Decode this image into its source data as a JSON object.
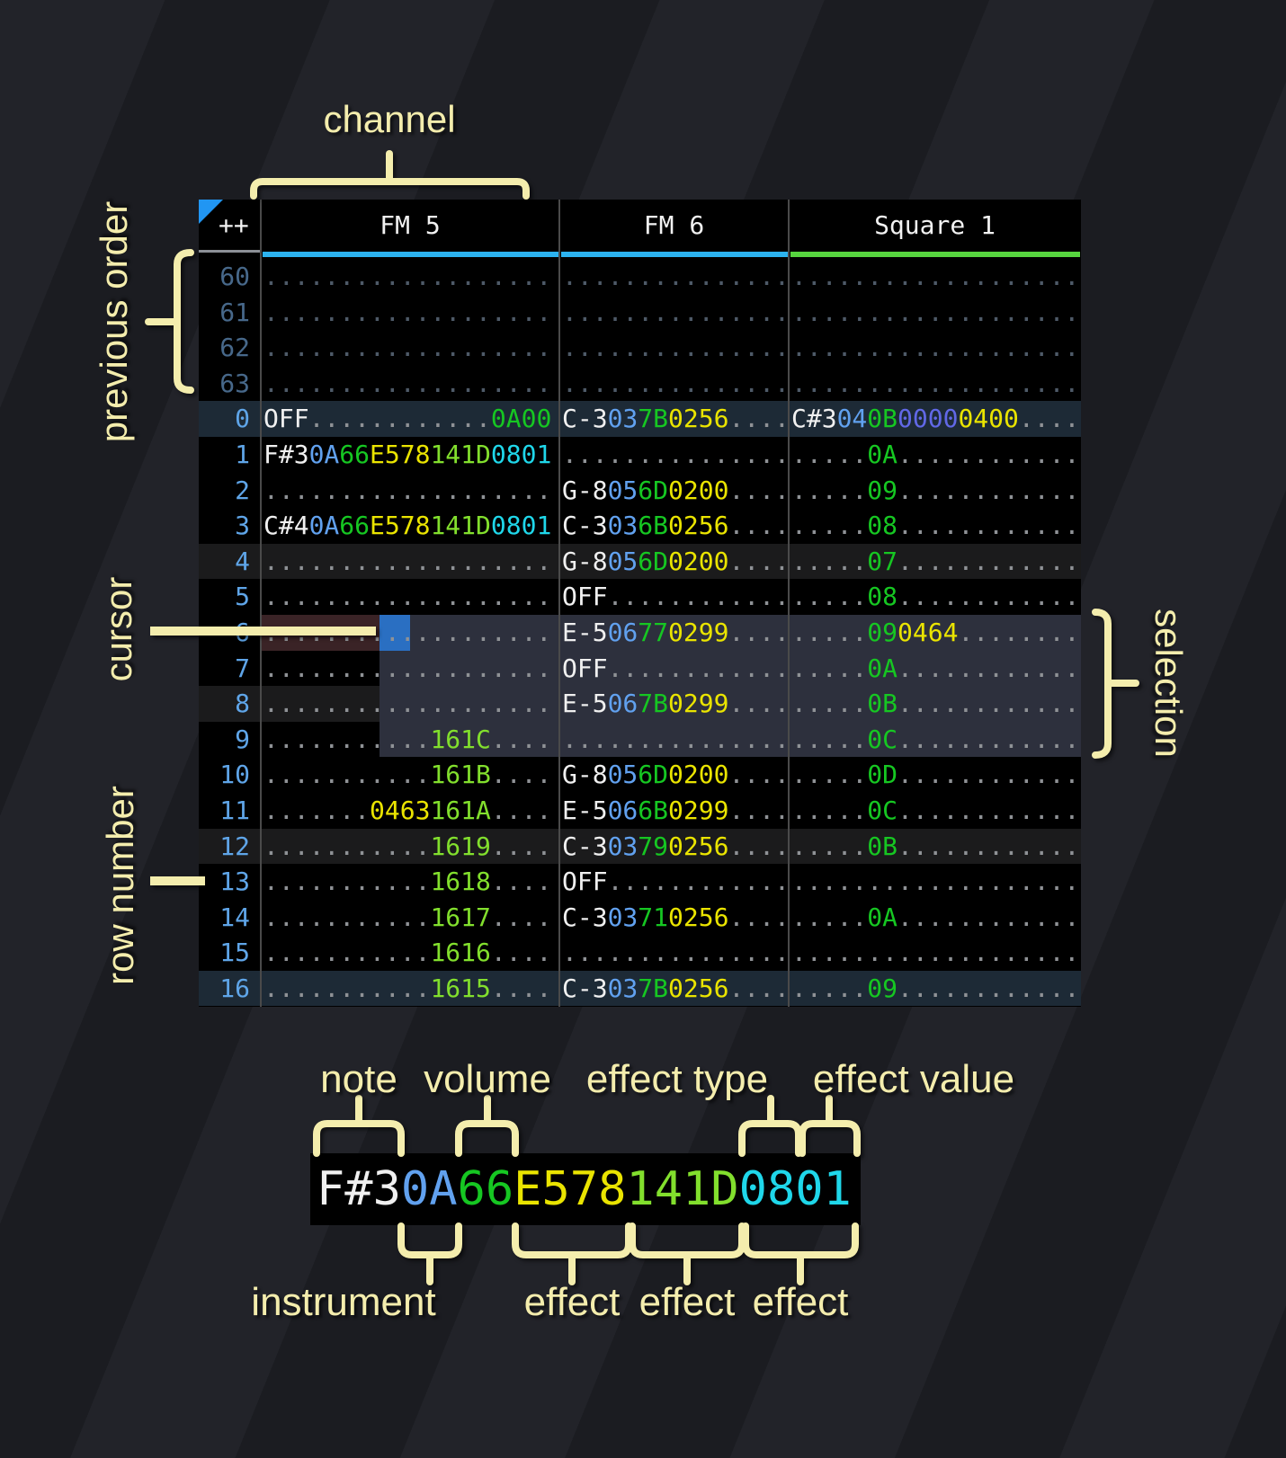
{
  "palette": {
    "note_white": "#f0f0f0",
    "instrument_blue": "#61a1ef",
    "volume_green": "#16c722",
    "effect_yellow": "#eae400",
    "effect_lime": "#82df2d",
    "effect_cyan": "#1fd7ea",
    "effect_indigo": "#6168e6",
    "dots_gray": "#8f9296",
    "row_number_blue": "#5fa5e8",
    "underline_cyan": "#2cb3f0",
    "underline_green": "#57d53f",
    "selection_bg": "#2d303d",
    "cursor_row_bg": "#3a2326",
    "cursor_bg": "#2a6fc2",
    "row_order_highlight_bg": "#1d2a36",
    "annotation_cream": "#f4edad",
    "corner_triangle_blue": "#2196f3"
  },
  "table": {
    "corner": "++",
    "channels": [
      {
        "label": "FM 5",
        "underline": "#2cb3f0"
      },
      {
        "label": "FM 6",
        "underline": "#2cb3f0"
      },
      {
        "label": "Square 1",
        "underline": "#57d53f"
      }
    ],
    "rows": [
      {
        "num": "60",
        "cls": "prev",
        "cells": [
          [
            [
              "d",
              "..................."
            ]
          ],
          [
            [
              "d",
              "..............."
            ]
          ],
          [
            [
              "d",
              "..................."
            ]
          ]
        ]
      },
      {
        "num": "61",
        "cls": "prev",
        "cells": [
          [
            [
              "d",
              "..................."
            ]
          ],
          [
            [
              "d",
              "..............."
            ]
          ],
          [
            [
              "d",
              "..................."
            ]
          ]
        ]
      },
      {
        "num": "62",
        "cls": "prev",
        "cells": [
          [
            [
              "d",
              "..................."
            ]
          ],
          [
            [
              "d",
              "..............."
            ]
          ],
          [
            [
              "d",
              "..................."
            ]
          ]
        ]
      },
      {
        "num": "63",
        "cls": "prev",
        "cells": [
          [
            [
              "d",
              "..................."
            ]
          ],
          [
            [
              "d",
              "..............."
            ]
          ],
          [
            [
              "d",
              "..................."
            ]
          ]
        ]
      },
      {
        "num": "0",
        "cls": "hl0",
        "cells": [
          [
            [
              "w",
              "OFF"
            ],
            [
              "d",
              "............"
            ],
            [
              "v",
              "0A00"
            ]
          ],
          [
            [
              "w",
              "C-3"
            ],
            [
              "i",
              "03"
            ],
            [
              "v",
              "7B"
            ],
            [
              "y",
              "0256"
            ],
            [
              "d",
              "...."
            ]
          ],
          [
            [
              "w",
              "C#3"
            ],
            [
              "i",
              "04"
            ],
            [
              "v",
              "0B"
            ],
            [
              "p",
              "0000"
            ],
            [
              "y",
              "0400"
            ],
            [
              "d",
              "...."
            ]
          ]
        ]
      },
      {
        "num": "1",
        "cls": "",
        "cells": [
          [
            [
              "w",
              "F#3"
            ],
            [
              "i",
              "0A"
            ],
            [
              "v",
              "66"
            ],
            [
              "y",
              "E578"
            ],
            [
              "l",
              "141D"
            ],
            [
              "c",
              "0801"
            ]
          ],
          [
            [
              "d",
              "..............."
            ]
          ],
          [
            [
              "d",
              "....."
            ],
            [
              "v",
              "0A"
            ],
            [
              "d",
              "............"
            ]
          ]
        ]
      },
      {
        "num": "2",
        "cls": "",
        "cells": [
          [
            [
              "d",
              "..................."
            ]
          ],
          [
            [
              "w",
              "G-8"
            ],
            [
              "i",
              "05"
            ],
            [
              "v",
              "6D"
            ],
            [
              "y",
              "0200"
            ],
            [
              "d",
              "...."
            ]
          ],
          [
            [
              "d",
              "....."
            ],
            [
              "v",
              "09"
            ],
            [
              "d",
              "............"
            ]
          ]
        ]
      },
      {
        "num": "3",
        "cls": "",
        "cells": [
          [
            [
              "w",
              "C#4"
            ],
            [
              "i",
              "0A"
            ],
            [
              "v",
              "66"
            ],
            [
              "y",
              "E578"
            ],
            [
              "l",
              "141D"
            ],
            [
              "c",
              "0801"
            ]
          ],
          [
            [
              "w",
              "C-3"
            ],
            [
              "i",
              "03"
            ],
            [
              "v",
              "6B"
            ],
            [
              "y",
              "0256"
            ],
            [
              "d",
              "...."
            ]
          ],
          [
            [
              "d",
              "....."
            ],
            [
              "v",
              "08"
            ],
            [
              "d",
              "............"
            ]
          ]
        ]
      },
      {
        "num": "4",
        "cls": "hl4",
        "cells": [
          [
            [
              "d",
              "..................."
            ]
          ],
          [
            [
              "w",
              "G-8"
            ],
            [
              "i",
              "05"
            ],
            [
              "v",
              "6D"
            ],
            [
              "y",
              "0200"
            ],
            [
              "d",
              "...."
            ]
          ],
          [
            [
              "d",
              "....."
            ],
            [
              "v",
              "07"
            ],
            [
              "d",
              "............"
            ]
          ]
        ]
      },
      {
        "num": "5",
        "cls": "",
        "cells": [
          [
            [
              "d",
              "..................."
            ]
          ],
          [
            [
              "w",
              "OFF"
            ],
            [
              "d",
              "............"
            ]
          ],
          [
            [
              "d",
              "....."
            ],
            [
              "v",
              "08"
            ],
            [
              "d",
              "............"
            ]
          ]
        ]
      },
      {
        "num": "6",
        "cls": "",
        "cells": [
          [
            [
              "d",
              "..................."
            ]
          ],
          [
            [
              "w",
              "E-5"
            ],
            [
              "i",
              "06"
            ],
            [
              "v",
              "77"
            ],
            [
              "y",
              "0299"
            ],
            [
              "d",
              "...."
            ]
          ],
          [
            [
              "d",
              "....."
            ],
            [
              "v",
              "09"
            ],
            [
              "y",
              "0464"
            ],
            [
              "d",
              "........"
            ]
          ]
        ]
      },
      {
        "num": "7",
        "cls": "",
        "cells": [
          [
            [
              "d",
              "..................."
            ]
          ],
          [
            [
              "w",
              "OFF"
            ],
            [
              "d",
              "............"
            ]
          ],
          [
            [
              "d",
              "....."
            ],
            [
              "v",
              "0A"
            ],
            [
              "d",
              "............"
            ]
          ]
        ]
      },
      {
        "num": "8",
        "cls": "hl4",
        "cells": [
          [
            [
              "d",
              "..................."
            ]
          ],
          [
            [
              "w",
              "E-5"
            ],
            [
              "i",
              "06"
            ],
            [
              "v",
              "7B"
            ],
            [
              "y",
              "0299"
            ],
            [
              "d",
              "...."
            ]
          ],
          [
            [
              "d",
              "....."
            ],
            [
              "v",
              "0B"
            ],
            [
              "d",
              "............"
            ]
          ]
        ]
      },
      {
        "num": "9",
        "cls": "",
        "cells": [
          [
            [
              "d",
              "..........."
            ],
            [
              "l",
              "161C"
            ],
            [
              "d",
              "...."
            ]
          ],
          [
            [
              "d",
              "..............."
            ]
          ],
          [
            [
              "d",
              "....."
            ],
            [
              "v",
              "0C"
            ],
            [
              "d",
              "............"
            ]
          ]
        ]
      },
      {
        "num": "10",
        "cls": "",
        "cells": [
          [
            [
              "d",
              "..........."
            ],
            [
              "l",
              "161B"
            ],
            [
              "d",
              "...."
            ]
          ],
          [
            [
              "w",
              "G-8"
            ],
            [
              "i",
              "05"
            ],
            [
              "v",
              "6D"
            ],
            [
              "y",
              "0200"
            ],
            [
              "d",
              "...."
            ]
          ],
          [
            [
              "d",
              "....."
            ],
            [
              "v",
              "0D"
            ],
            [
              "d",
              "............"
            ]
          ]
        ]
      },
      {
        "num": "11",
        "cls": "",
        "cells": [
          [
            [
              "d",
              "......."
            ],
            [
              "y",
              "0463"
            ],
            [
              "l",
              "161A"
            ],
            [
              "d",
              "...."
            ]
          ],
          [
            [
              "w",
              "E-5"
            ],
            [
              "i",
              "06"
            ],
            [
              "v",
              "6B"
            ],
            [
              "y",
              "0299"
            ],
            [
              "d",
              "...."
            ]
          ],
          [
            [
              "d",
              "....."
            ],
            [
              "v",
              "0C"
            ],
            [
              "d",
              "............"
            ]
          ]
        ]
      },
      {
        "num": "12",
        "cls": "hl4",
        "cells": [
          [
            [
              "d",
              "..........."
            ],
            [
              "l",
              "1619"
            ],
            [
              "d",
              "...."
            ]
          ],
          [
            [
              "w",
              "C-3"
            ],
            [
              "i",
              "03"
            ],
            [
              "v",
              "79"
            ],
            [
              "y",
              "0256"
            ],
            [
              "d",
              "...."
            ]
          ],
          [
            [
              "d",
              "....."
            ],
            [
              "v",
              "0B"
            ],
            [
              "d",
              "............"
            ]
          ]
        ]
      },
      {
        "num": "13",
        "cls": "",
        "cells": [
          [
            [
              "d",
              "..........."
            ],
            [
              "l",
              "1618"
            ],
            [
              "d",
              "...."
            ]
          ],
          [
            [
              "w",
              "OFF"
            ],
            [
              "d",
              "............"
            ]
          ],
          [
            [
              "d",
              "..................."
            ]
          ]
        ]
      },
      {
        "num": "14",
        "cls": "",
        "cells": [
          [
            [
              "d",
              "..........."
            ],
            [
              "l",
              "1617"
            ],
            [
              "d",
              "...."
            ]
          ],
          [
            [
              "w",
              "C-3"
            ],
            [
              "i",
              "03"
            ],
            [
              "v",
              "71"
            ],
            [
              "y",
              "0256"
            ],
            [
              "d",
              "...."
            ]
          ],
          [
            [
              "d",
              "....."
            ],
            [
              "v",
              "0A"
            ],
            [
              "d",
              "............"
            ]
          ]
        ]
      },
      {
        "num": "15",
        "cls": "",
        "cells": [
          [
            [
              "d",
              "..........."
            ],
            [
              "l",
              "1616"
            ],
            [
              "d",
              "...."
            ]
          ],
          [
            [
              "d",
              "..............."
            ]
          ],
          [
            [
              "d",
              "..................."
            ]
          ]
        ]
      },
      {
        "num": "16",
        "cls": "hl0",
        "cells": [
          [
            [
              "d",
              "..........."
            ],
            [
              "l",
              "1615"
            ],
            [
              "d",
              "...."
            ]
          ],
          [
            [
              "w",
              "C-3"
            ],
            [
              "i",
              "03"
            ],
            [
              "v",
              "7B"
            ],
            [
              "y",
              "0256"
            ],
            [
              "d",
              "...."
            ]
          ],
          [
            [
              "d",
              "....."
            ],
            [
              "v",
              "09"
            ],
            [
              "d",
              "............"
            ]
          ]
        ]
      }
    ]
  },
  "annotations": {
    "channel": "channel",
    "previous_order": "previous order",
    "cursor": "cursor",
    "row_number": "row number",
    "selection": "selection"
  },
  "legend": {
    "note": "note",
    "volume": "volume",
    "effect_type": "effect type",
    "effect_value": "effect value",
    "instrument": "instrument",
    "effects": [
      "effect",
      "effect",
      "effect"
    ],
    "segments": [
      {
        "c": "w",
        "t": "F#3"
      },
      {
        "c": "i",
        "t": "0A"
      },
      {
        "c": "v",
        "t": "66"
      },
      {
        "c": "y",
        "t": "E578"
      },
      {
        "c": "l",
        "t": "141D"
      },
      {
        "c": "c",
        "t": "0801"
      }
    ]
  }
}
